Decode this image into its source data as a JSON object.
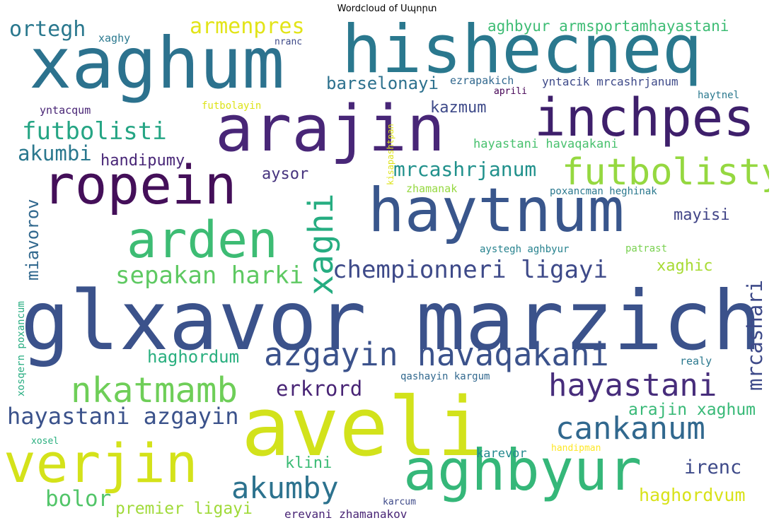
{
  "title": "Wordcloud of Սպորտ",
  "words": [
    {
      "id": "glxavor-marzich",
      "text": "glxavor marzich",
      "color": "#3b528b"
    },
    {
      "id": "aveli",
      "text": "aveli",
      "color": "#d2e21b"
    },
    {
      "id": "xaghum",
      "text": "xaghum",
      "color": "#2c728e"
    },
    {
      "id": "hishecneq",
      "text": "hishecneq",
      "color": "#2a788e"
    },
    {
      "id": "arajin",
      "text": "arajin",
      "color": "#482677"
    },
    {
      "id": "inchpes",
      "text": "inchpes",
      "color": "#3e1f6b"
    },
    {
      "id": "ropein",
      "text": "ropein",
      "color": "#440f59"
    },
    {
      "id": "haytnum",
      "text": "haytnum",
      "color": "#39568c"
    },
    {
      "id": "arden",
      "text": "arden",
      "color": "#3dbc74"
    },
    {
      "id": "verjin",
      "text": "verjin",
      "color": "#d4e21a"
    },
    {
      "id": "aghbyur",
      "text": "aghbyur",
      "color": "#35b779"
    },
    {
      "id": "futbolisty",
      "text": "futbolisty",
      "color": "#95d840"
    },
    {
      "id": "azgayin-havaqakani",
      "text": "azgayin havaqakani",
      "color": "#3b528b"
    },
    {
      "id": "nkatmamb",
      "text": "nkatmamb",
      "color": "#6ece58"
    },
    {
      "id": "hayastani",
      "text": "hayastani",
      "color": "#472d7b"
    },
    {
      "id": "cankanum",
      "text": "cankanum",
      "color": "#31688e"
    },
    {
      "id": "hayastani-azgayin",
      "text": "hayastani azgayin",
      "color": "#3b528b"
    },
    {
      "id": "akumby",
      "text": "akumby",
      "color": "#2c728e"
    },
    {
      "id": "xaghi",
      "text": "xaghi",
      "color": "#26ad81"
    },
    {
      "id": "chempionneri-ligayi",
      "text": "chempionneri ligayi",
      "color": "#3e4a89"
    },
    {
      "id": "sepakan-harki",
      "text": "sepakan harki",
      "color": "#5ec962"
    },
    {
      "id": "armenpres",
      "text": "armenpres",
      "color": "#e2e418"
    },
    {
      "id": "ortegh",
      "text": "ortegh",
      "color": "#2a788e"
    },
    {
      "id": "futbolisti",
      "text": "futbolisti",
      "color": "#25a584"
    },
    {
      "id": "akumbi",
      "text": "akumbi",
      "color": "#2a788e"
    },
    {
      "id": "mrcashrjanum-big",
      "text": "mrcashrjanum",
      "color": "#21918c"
    },
    {
      "id": "miavorov",
      "text": "miavorov",
      "color": "#31688e"
    },
    {
      "id": "erkrord",
      "text": "erkrord",
      "color": "#482475"
    },
    {
      "id": "mrcashari",
      "text": "mrcashari",
      "color": "#3e4a89"
    },
    {
      "id": "irenc",
      "text": "irenc",
      "color": "#3e4a89"
    },
    {
      "id": "bolor",
      "text": "bolor",
      "color": "#52c569"
    },
    {
      "id": "haghordvum",
      "text": "haghordvum",
      "color": "#d8e219"
    },
    {
      "id": "premier-ligayi",
      "text": "premier ligayi",
      "color": "#a0da39"
    },
    {
      "id": "arajin-xaghum",
      "text": "arajin xaghum",
      "color": "#38b977"
    },
    {
      "id": "haghordum",
      "text": "haghordum",
      "color": "#29af7f"
    },
    {
      "id": "barselonayi",
      "text": "barselonayi",
      "color": "#2d718e"
    },
    {
      "id": "kazmum",
      "text": "kazmum",
      "color": "#3e4a89"
    },
    {
      "id": "handipumy",
      "text": "handipumy",
      "color": "#482677"
    },
    {
      "id": "aysor",
      "text": "aysor",
      "color": "#46337e"
    },
    {
      "id": "mayisi",
      "text": "mayisi",
      "color": "#414487"
    },
    {
      "id": "xaghic",
      "text": "xaghic",
      "color": "#a8db34"
    },
    {
      "id": "klini",
      "text": "klini",
      "color": "#3bbb75"
    },
    {
      "id": "karevor",
      "text": "karevor",
      "color": "#23898e"
    },
    {
      "id": "aghbyur-armsportamhayastani",
      "text": "aghbyur armsportamhayastani",
      "color": "#3dbc74"
    },
    {
      "id": "hayastani-havaqakani",
      "text": "hayastani havaqakani",
      "color": "#48c16e"
    },
    {
      "id": "ezrapakich",
      "text": "ezrapakich",
      "color": "#31688e"
    },
    {
      "id": "yntacik-mrcashrjanum",
      "text": "yntacik mrcashrjanum",
      "color": "#3e4a89"
    },
    {
      "id": "zhamanak",
      "text": "zhamanak",
      "color": "#95d840"
    },
    {
      "id": "poxancman-heghinak",
      "text": "poxancman heghinak",
      "color": "#2a788e"
    },
    {
      "id": "aystegh-aghbyur",
      "text": "aystegh aghbyur",
      "color": "#26828e"
    },
    {
      "id": "patrast",
      "text": "patrast",
      "color": "#7ad151"
    },
    {
      "id": "realy",
      "text": "realy",
      "color": "#2a788e"
    },
    {
      "id": "qashayin-kargum",
      "text": "qashayin kargum",
      "color": "#31688e"
    },
    {
      "id": "yntacqum",
      "text": "yntacqum",
      "color": "#482475"
    },
    {
      "id": "futbolayin",
      "text": "futbolayin",
      "color": "#dde318"
    },
    {
      "id": "haytnel",
      "text": "haytnel",
      "color": "#2a788e"
    },
    {
      "id": "apriliz",
      "text": "aprilі",
      "color": "#440154"
    },
    {
      "id": "xaghy",
      "text": "xaghy",
      "color": "#2a788e"
    },
    {
      "id": "nranc",
      "text": "nranc",
      "color": "#3e4a89"
    },
    {
      "id": "handipman",
      "text": "handipman",
      "color": "#fde725"
    },
    {
      "id": "erevani-zhamanakov",
      "text": "erevani zhamanakov",
      "color": "#482475"
    },
    {
      "id": "karcum",
      "text": "karcum",
      "color": "#3e4a89"
    },
    {
      "id": "xosel",
      "text": "xosel",
      "color": "#29af7f"
    },
    {
      "id": "xosqern-poxancum",
      "text": "xosqern poxancum",
      "color": "#27ad81"
    },
    {
      "id": "kisapashtpan",
      "text": "kisapashtpan",
      "color": "#dde318"
    }
  ]
}
